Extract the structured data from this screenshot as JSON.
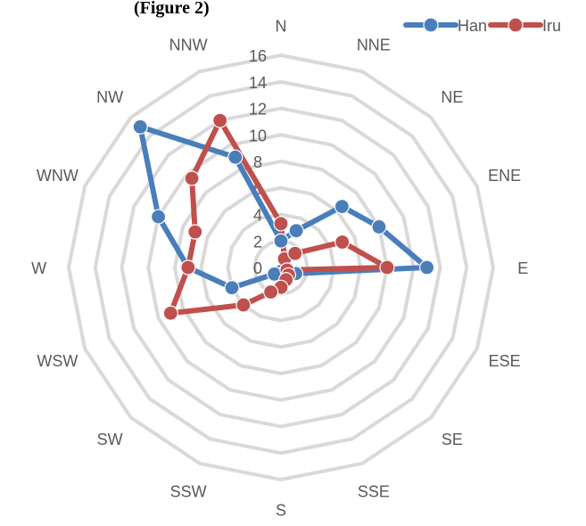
{
  "header_fragment": "(Figure 2)",
  "chart_data": {
    "type": "radar",
    "directions": [
      "N",
      "NNE",
      "NE",
      "ENE",
      "E",
      "ESE",
      "SE",
      "SSE",
      "S",
      "SSW",
      "SW",
      "WSW",
      "W",
      "WNW",
      "NW",
      "NNW"
    ],
    "radial_ticks": [
      0,
      2,
      4,
      6,
      8,
      10,
      12,
      14,
      16
    ],
    "rlim": [
      0,
      16
    ],
    "legend_position": "top-right",
    "series": [
      {
        "name": "Han",
        "color": "#4a7ebb",
        "values": [
          2,
          3,
          6.5,
          8,
          11,
          1.2,
          0.5,
          0.8,
          0.3,
          0.6,
          0.7,
          4,
          7,
          10,
          15,
          9
        ]
      },
      {
        "name": "Iru",
        "color": "#c0504d",
        "values": [
          3.3,
          0.7,
          1.5,
          5,
          8,
          0.5,
          0.8,
          1,
          1.5,
          2,
          4,
          9,
          7,
          7,
          9.5,
          12
        ]
      }
    ]
  }
}
